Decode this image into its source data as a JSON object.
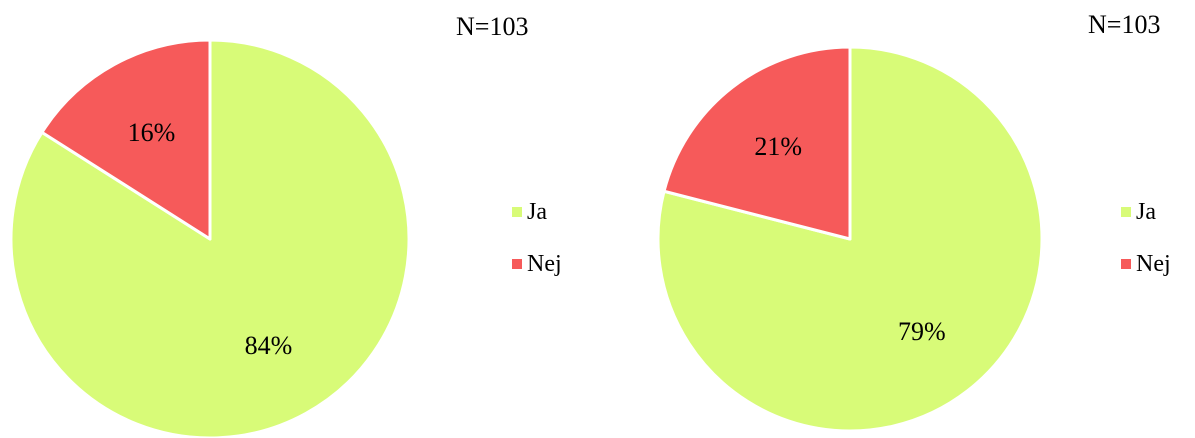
{
  "chart_data": [
    {
      "type": "pie",
      "categories": [
        "Ja",
        "Nej"
      ],
      "values": [
        84,
        16
      ],
      "value_labels": [
        "84%",
        "16%"
      ],
      "colors": [
        "#d8fb78",
        "#f65a5a"
      ],
      "annotation": "N=103",
      "legend": "right",
      "start_angle": "12 o'clock, clockwise"
    },
    {
      "type": "pie",
      "categories": [
        "Ja",
        "Nej"
      ],
      "values": [
        79,
        21
      ],
      "value_labels": [
        "79%",
        "21%"
      ],
      "colors": [
        "#d8fb78",
        "#f65a5a"
      ],
      "annotation": "N=103",
      "legend": "right",
      "start_angle": "12 o'clock, clockwise"
    }
  ]
}
